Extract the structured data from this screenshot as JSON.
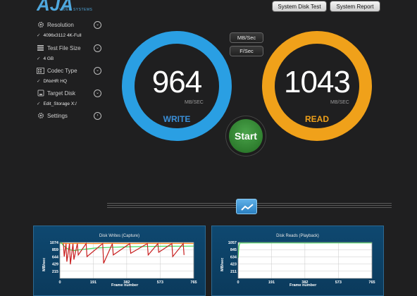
{
  "header": {
    "logo_text": "AJA",
    "logo_subtitle": "VIDEO SYSTEMS",
    "system_disk_test_label": "System Disk Test",
    "system_report_label": "System Report"
  },
  "sidebar": {
    "resolution": {
      "label": "Resolution",
      "value": "4096x3112 4K-Full"
    },
    "test_file_size": {
      "label": "Test File Size",
      "value": "4 GB"
    },
    "codec_type": {
      "label": "Codec Type",
      "value": "DNxHR HQ"
    },
    "target_disk": {
      "label": "Target Disk",
      "value": "Edit_Storage X:/"
    },
    "settings": {
      "label": "Settings"
    }
  },
  "units": {
    "mbsec_label": "MB/Sec",
    "fsec_label": "F/Sec"
  },
  "write_gauge": {
    "value": "964",
    "unit": "MB/SEC",
    "label": "WRITE",
    "color": "#2a9fe3"
  },
  "read_gauge": {
    "value": "1043",
    "unit": "MB/SEC",
    "label": "READ",
    "color": "#f0a11a"
  },
  "start_label": "Start",
  "chart_data": [
    {
      "type": "line",
      "title": "Disk Writes (Capture)",
      "xlabel": "Frame number",
      "ylabel": "MB/sec",
      "x_ticks": [
        0,
        191,
        382,
        573,
        765
      ],
      "y_ticks": [
        1074,
        859,
        644,
        429,
        215
      ],
      "xlim": [
        0,
        765
      ],
      "ylim": [
        0,
        1074
      ],
      "grid": true,
      "series": [
        {
          "color": "#ff8a1e",
          "x": [
            0,
            50,
            100,
            200,
            300,
            400,
            500,
            600,
            700,
            765
          ],
          "y": [
            1050,
            1040,
            1045,
            1040,
            1045,
            1040,
            1045,
            1042,
            1045,
            1043
          ]
        },
        {
          "color": "#3ddc5a",
          "x": [
            0,
            10,
            20,
            40,
            60,
            80,
            120,
            200,
            300,
            400,
            500,
            600,
            700,
            765
          ],
          "y": [
            1074,
            1050,
            980,
            900,
            850,
            830,
            860,
            905,
            930,
            945,
            955,
            960,
            963,
            964
          ]
        },
        {
          "color": "#c81e1e",
          "x": [
            20,
            25,
            35,
            40,
            55,
            60,
            75,
            80,
            100,
            105,
            150,
            155,
            245,
            250,
            300,
            305,
            400,
            405,
            500,
            505,
            560,
            565,
            640,
            645,
            705,
            710
          ],
          "y": [
            1040,
            650,
            1040,
            500,
            1040,
            420,
            1040,
            560,
            1040,
            700,
            1040,
            650,
            1040,
            450,
            1040,
            700,
            1040,
            750,
            1040,
            700,
            1040,
            780,
            1040,
            650,
            1040,
            700
          ]
        }
      ]
    },
    {
      "type": "line",
      "title": "Disk Reads (Playback)",
      "xlabel": "Frame number",
      "ylabel": "MB/sec",
      "x_ticks": [
        0,
        191,
        382,
        573,
        765
      ],
      "y_ticks": [
        1057,
        845,
        634,
        423,
        211
      ],
      "xlim": [
        0,
        765
      ],
      "ylim": [
        0,
        1057
      ],
      "grid": true,
      "series": [
        {
          "color": "#3ddc5a",
          "x": [
            0,
            5,
            10,
            20,
            50,
            100,
            200,
            300,
            400,
            500,
            600,
            700,
            765
          ],
          "y": [
            600,
            950,
            1040,
            1045,
            1040,
            1046,
            1042,
            1045,
            1041,
            1044,
            1042,
            1045,
            1043
          ]
        }
      ]
    }
  ]
}
